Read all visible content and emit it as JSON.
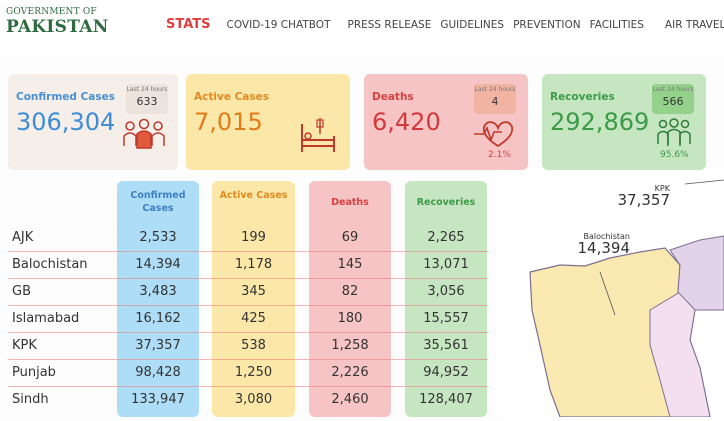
{
  "header": {
    "logo_line1": "GOVERNMENT OF",
    "logo_line2": "PAKISTAN",
    "nav": [
      "STATS",
      "COVID-19 CHATBOT",
      "PRESS RELEASE",
      "GUIDELINES",
      "PREVENTION",
      "FACILITIES",
      "AIR TRAVEL"
    ]
  },
  "summary": {
    "confirmed": {
      "label": "Confirmed Cases",
      "value": "306,304",
      "badge_label": "Last 24 hours",
      "badge_value": "633",
      "color": "#3e8dd6"
    },
    "active": {
      "label": "Active Cases",
      "value": "7,015",
      "color": "#e07c1a"
    },
    "deaths": {
      "label": "Deaths",
      "value": "6,420",
      "badge_label": "Last 24 hours",
      "badge_value": "4",
      "pct": "2.1%",
      "color": "#d13a3a"
    },
    "recoveries": {
      "label": "Recoveries",
      "value": "292,869",
      "badge_label": "Last 24 hours",
      "badge_value": "566",
      "pct": "95.6%",
      "color": "#3a9a47"
    }
  },
  "table": {
    "headers": [
      "Confirmed Cases",
      "Active Cases",
      "Deaths",
      "Recoveries"
    ],
    "rows": [
      {
        "region": "AJK",
        "confirmed": "2,533",
        "active": "199",
        "deaths": "69",
        "recoveries": "2,265"
      },
      {
        "region": "Balochistan",
        "confirmed": "14,394",
        "active": "1,178",
        "deaths": "145",
        "recoveries": "13,071"
      },
      {
        "region": "GB",
        "confirmed": "3,483",
        "active": "345",
        "deaths": "82",
        "recoveries": "3,056"
      },
      {
        "region": "Islamabad",
        "confirmed": "16,162",
        "active": "425",
        "deaths": "180",
        "recoveries": "15,557"
      },
      {
        "region": "KPK",
        "confirmed": "37,357",
        "active": "538",
        "deaths": "1,258",
        "recoveries": "35,561"
      },
      {
        "region": "Punjab",
        "confirmed": "98,428",
        "active": "1,250",
        "deaths": "2,226",
        "recoveries": "94,952"
      },
      {
        "region": "Sindh",
        "confirmed": "133,947",
        "active": "3,080",
        "deaths": "2,460",
        "recoveries": "128,407"
      }
    ]
  },
  "map": {
    "labels": [
      {
        "name": "KPK",
        "value": "37,357"
      },
      {
        "name": "Balochistan",
        "value": "14,394"
      }
    ]
  }
}
